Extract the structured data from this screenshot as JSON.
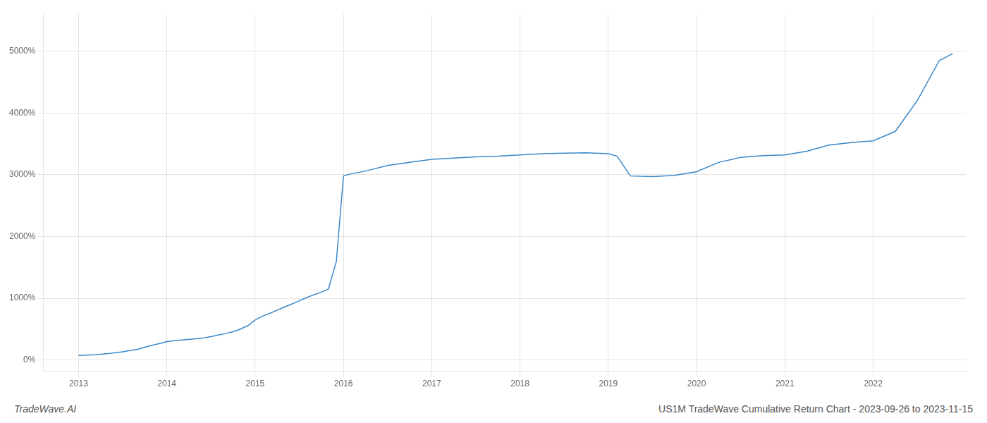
{
  "chart_data": {
    "type": "line",
    "x": [
      2013.0,
      2013.08,
      2013.17,
      2013.25,
      2013.33,
      2013.42,
      2013.5,
      2013.58,
      2013.67,
      2013.75,
      2013.83,
      2013.92,
      2014.0,
      2014.08,
      2014.17,
      2014.25,
      2014.33,
      2014.42,
      2014.5,
      2014.58,
      2014.67,
      2014.75,
      2014.83,
      2014.92,
      2015.0,
      2015.08,
      2015.17,
      2015.25,
      2015.33,
      2015.42,
      2015.5,
      2015.58,
      2015.67,
      2015.75,
      2015.83,
      2015.92,
      2016.0,
      2016.1,
      2016.25,
      2016.5,
      2016.75,
      2017.0,
      2017.25,
      2017.5,
      2017.75,
      2018.0,
      2018.25,
      2018.5,
      2018.75,
      2019.0,
      2019.1,
      2019.25,
      2019.5,
      2019.75,
      2020.0,
      2020.25,
      2020.5,
      2020.75,
      2021.0,
      2021.25,
      2021.5,
      2021.75,
      2022.0,
      2022.25,
      2022.5,
      2022.75,
      2022.9
    ],
    "values": [
      75,
      80,
      85,
      95,
      105,
      120,
      135,
      155,
      175,
      210,
      240,
      270,
      300,
      315,
      325,
      335,
      345,
      360,
      380,
      405,
      430,
      460,
      500,
      560,
      650,
      710,
      760,
      810,
      860,
      910,
      960,
      1010,
      1060,
      1100,
      1150,
      1600,
      2980,
      3020,
      3060,
      3150,
      3200,
      3250,
      3270,
      3290,
      3300,
      3320,
      3340,
      3350,
      3355,
      3340,
      3300,
      2980,
      2970,
      2990,
      3050,
      3200,
      3280,
      3310,
      3320,
      3380,
      3480,
      3520,
      3550,
      3700,
      4200,
      4850,
      4960
    ],
    "color": "#3a87c8",
    "xlim": [
      2012.6,
      2023.05
    ],
    "ylim": [
      -180,
      5600
    ],
    "xticks": [
      2013,
      2014,
      2015,
      2016,
      2017,
      2018,
      2019,
      2020,
      2021,
      2022
    ],
    "yticks": [
      {
        "value": 0,
        "label": "0%"
      },
      {
        "value": 1000,
        "label": "1000%"
      },
      {
        "value": 2000,
        "label": "2000%"
      },
      {
        "value": 3000,
        "label": "3000%"
      },
      {
        "value": 4000,
        "label": "4000%"
      },
      {
        "value": 5000,
        "label": "5000%"
      }
    ],
    "grid": true,
    "annotations": [
      "TradeWave.AI",
      "US1M TradeWave Cumulative Return Chart - 2023-09-26 to 2023-11-15"
    ]
  }
}
